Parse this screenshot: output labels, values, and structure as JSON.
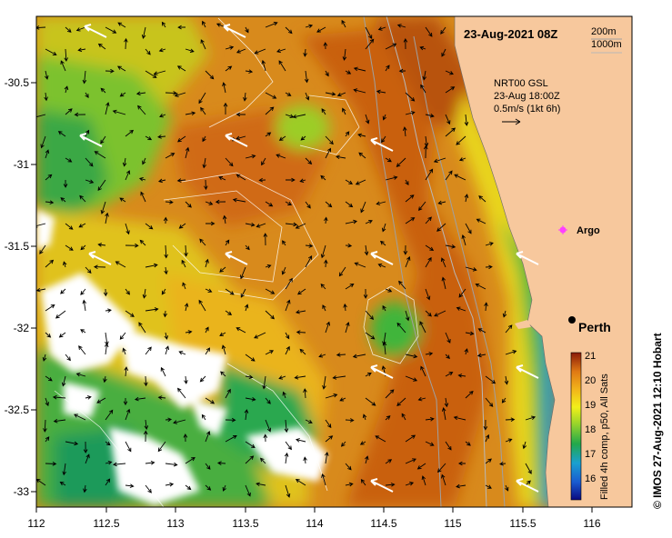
{
  "title": "23-Aug-2021 08Z",
  "depth_legend": [
    "200m",
    "1000m"
  ],
  "current_info": {
    "model": "NRT00 GSL",
    "time": "23-Aug 18:00Z",
    "scale": "0.5m/s (1kt 6h)"
  },
  "places": [
    {
      "name": "Argo",
      "lon": 115.88,
      "lat": -31.45
    },
    {
      "name": "Perth",
      "lon": 115.86,
      "lat": -31.95
    }
  ],
  "colorbar": {
    "label": "Filled 4h comp, p50, All Sats",
    "ticks": [
      "21",
      "20",
      "19",
      "18",
      "17",
      "16"
    ]
  },
  "x_ticks": [
    "112",
    "112.5",
    "113",
    "113.5",
    "114",
    "114.5",
    "115",
    "115.5",
    "116"
  ],
  "y_ticks": [
    "-30.5",
    "-31",
    "-31.5",
    "-32",
    "-32.5",
    "-33"
  ],
  "credit": "© IMOS 27-Aug-2021 12:10 Hobart",
  "colors": {
    "land": "#f7c89d",
    "cloud": "#ffffff",
    "warm": "#cf6a10",
    "cool": "#2aa84a"
  }
}
